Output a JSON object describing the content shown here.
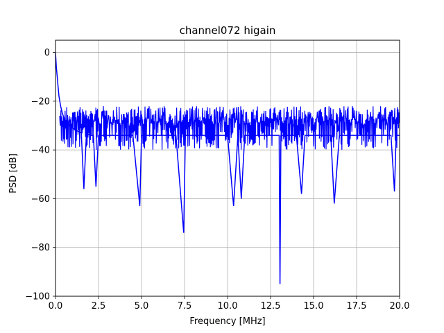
{
  "chart_data": {
    "type": "line",
    "title": "channel072 higain",
    "xlabel": "Frequency [MHz]",
    "ylabel": "PSD [dB]",
    "xlim": [
      0.0,
      20.0
    ],
    "ylim": [
      -100,
      5
    ],
    "x_ticks": [
      "0.0",
      "2.5",
      "5.0",
      "7.5",
      "10.0",
      "12.5",
      "15.0",
      "17.5",
      "20.0"
    ],
    "y_ticks": [
      "0",
      "−20",
      "−40",
      "−60",
      "−80",
      "−100"
    ],
    "grid": true,
    "line_color": "#0000ff",
    "series": [
      {
        "x": [
          0.0,
          0.05,
          0.1,
          0.15,
          0.2,
          0.25,
          0.3,
          0.4,
          0.5,
          0.6,
          0.8,
          1.0,
          1.2,
          1.5,
          1.65,
          1.8,
          2.0,
          2.2,
          2.35,
          2.5,
          3.0,
          3.5,
          4.0,
          4.5,
          4.9,
          5.0,
          5.5,
          6.0,
          6.5,
          7.0,
          7.45,
          7.55,
          8.0,
          8.5,
          9.0,
          9.5,
          10.0,
          10.35,
          10.6,
          10.8,
          11.0,
          11.5,
          12.0,
          12.5,
          13.0,
          13.05,
          13.1,
          13.5,
          14.0,
          14.3,
          14.5,
          15.0,
          15.5,
          16.0,
          16.2,
          16.5,
          17.0,
          17.5,
          18.0,
          18.5,
          19.0,
          19.5,
          19.7,
          19.8,
          20.0
        ],
        "y": [
          0,
          -6,
          -10,
          -14,
          -18,
          -20,
          -22,
          -25,
          -27,
          -28,
          -30,
          -31,
          -32,
          -33,
          -56,
          -33,
          -34,
          -34,
          -55,
          -34,
          -34,
          -34,
          -34,
          -34,
          -63,
          -34,
          -34,
          -34,
          -34,
          -34,
          -74,
          -34,
          -34,
          -34,
          -34,
          -34,
          -34,
          -63,
          -34,
          -60,
          -34,
          -34,
          -34,
          -34,
          -34,
          -95,
          -34,
          -34,
          -34,
          -58,
          -34,
          -34,
          -34,
          -34,
          -62,
          -34,
          -34,
          -34,
          -34,
          -34,
          -34,
          -34,
          -57,
          -34,
          -34
        ]
      }
    ]
  }
}
